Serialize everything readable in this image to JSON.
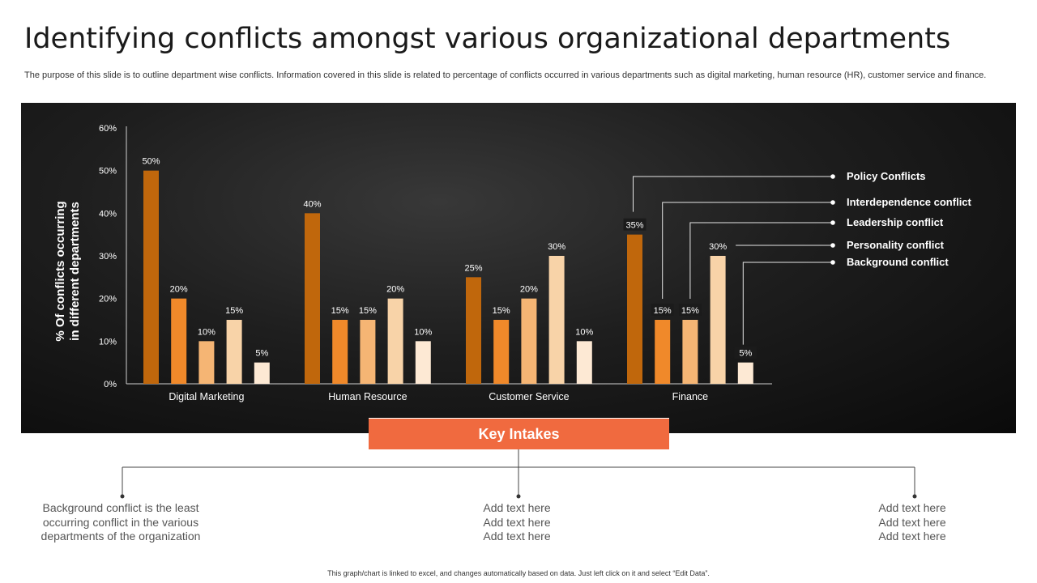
{
  "slide": {
    "title": "Identifying conflicts amongst various organizational departments",
    "subtitle": "The purpose of this slide is to outline department wise conflicts. Information covered in this slide is related to percentage of conflicts occurred in various departments such as digital marketing, human resource (HR), customer service and finance.",
    "footnote": "This graph/chart is linked to excel, and changes automatically based on data. Just left click on it and select “Edit Data”."
  },
  "key_intakes": {
    "title": "Key Intakes",
    "items": [
      {
        "lines": [
          "Background conflict is the least",
          "occurring conflict in the various",
          "departments of the organization"
        ]
      },
      {
        "lines": [
          "Add text here",
          "Add text here",
          "Add text here"
        ]
      },
      {
        "lines": [
          "Add text here",
          "Add text here",
          "Add text here"
        ]
      }
    ]
  },
  "chart_data": {
    "type": "bar",
    "title": "",
    "xlabel": "",
    "ylabel": "% Of conflicts occurring in different departments",
    "ylabel_lines": [
      "% Of conflicts occurring",
      "in different departments"
    ],
    "categories": [
      "Digital Marketing",
      "Human Resource",
      "Customer Service",
      "Finance"
    ],
    "ylim": [
      0,
      60
    ],
    "yticks": [
      0,
      10,
      20,
      30,
      40,
      50,
      60
    ],
    "ytick_labels": [
      "0%",
      "10%",
      "20%",
      "30%",
      "40%",
      "50%",
      "60%"
    ],
    "series": [
      {
        "name": "Policy Conflicts",
        "values": [
          50,
          40,
          25,
          35
        ],
        "color": "#c0670c"
      },
      {
        "name": "Interdependence conflict",
        "values": [
          20,
          15,
          15,
          15
        ],
        "color": "#f0892a"
      },
      {
        "name": "Leadership conflict",
        "values": [
          10,
          15,
          20,
          15
        ],
        "color": "#f5b574"
      },
      {
        "name": "Personality conflict",
        "values": [
          15,
          20,
          30,
          30
        ],
        "color": "#f8d3a8"
      },
      {
        "name": "Background conflict",
        "values": [
          5,
          10,
          10,
          5
        ],
        "color": "#fde9d4"
      }
    ],
    "data_labels": [
      [
        "50%",
        "40%",
        "25%",
        "35%"
      ],
      [
        "20%",
        "15%",
        "15%",
        "15%"
      ],
      [
        "10%",
        "15%",
        "20%",
        "15%"
      ],
      [
        "15%",
        "20%",
        "30%",
        "30%"
      ],
      [
        "5%",
        "10%",
        "10%",
        "5%"
      ]
    ],
    "legend": "right, callouts to Finance bars",
    "grid": false,
    "colors": {
      "panel": "#151515",
      "axis": "#cfcfcf",
      "text": "#ffffff",
      "accent": "#f06a3f"
    }
  }
}
